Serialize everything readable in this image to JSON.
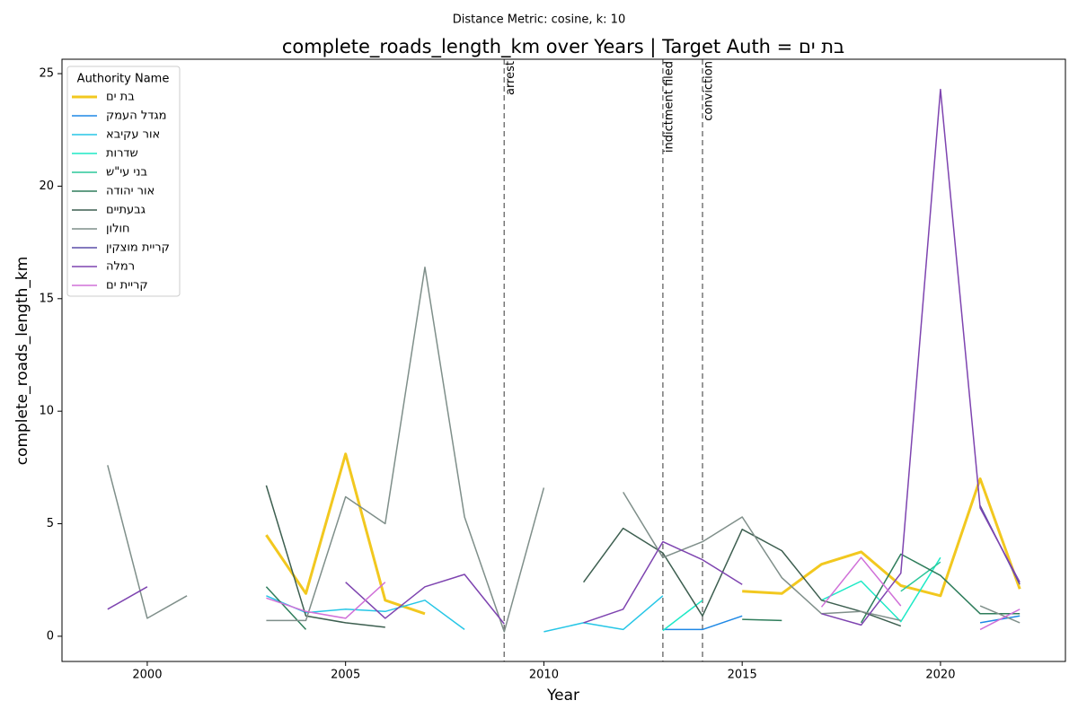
{
  "chart_data": {
    "type": "line",
    "title": "complete_roads_length_km over Years | Target Auth = בת ים",
    "subtitle": "Distance Metric: cosine, k: 10",
    "x_label": "Year",
    "y_label": "complete_roads_length_km",
    "legend_title": "Authority Name",
    "legend_position": "upper-left",
    "grid": false,
    "xlim": [
      1997.85,
      2023.15
    ],
    "xticks": [
      2000,
      2005,
      2010,
      2015,
      2020
    ],
    "ylim": [
      -1.12,
      25.64
    ],
    "yticks": [
      0,
      5,
      10,
      15,
      20,
      25
    ],
    "x": [
      1999,
      2000,
      2001,
      2002,
      2003,
      2004,
      2005,
      2006,
      2007,
      2008,
      2009,
      2010,
      2011,
      2012,
      2013,
      2014,
      2015,
      2016,
      2017,
      2018,
      2019,
      2020,
      2021,
      2022
    ],
    "annotations": [
      {
        "x": 2009,
        "label": "arrest"
      },
      {
        "x": 2013,
        "label": "indictment filed"
      },
      {
        "x": 2014,
        "label": "conviction"
      }
    ],
    "series": [
      {
        "name": "בת ים",
        "color": "#f2c81f",
        "linewidth": 3,
        "values": [
          null,
          null,
          null,
          null,
          4.5,
          1.9,
          8.1,
          1.6,
          1.0,
          null,
          null,
          null,
          null,
          null,
          null,
          null,
          2.0,
          1.9,
          3.2,
          3.75,
          2.25,
          1.8,
          7.0,
          2.1
        ]
      },
      {
        "name": "מגדל העמק",
        "color": "#1e88e5",
        "linewidth": 1.5,
        "values": [
          null,
          null,
          null,
          null,
          null,
          null,
          null,
          null,
          null,
          null,
          null,
          null,
          null,
          null,
          0.3,
          0.3,
          0.9,
          null,
          null,
          null,
          null,
          null,
          0.6,
          0.9
        ]
      },
      {
        "name": "אור עקיבא",
        "color": "#26c6e6",
        "linewidth": 1.5,
        "values": [
          null,
          null,
          null,
          null,
          1.8,
          1.05,
          1.2,
          1.1,
          1.6,
          0.3,
          null,
          0.2,
          0.6,
          0.3,
          1.8,
          null,
          null,
          null,
          null,
          null,
          null,
          null,
          null,
          null
        ]
      },
      {
        "name": "שדרות",
        "color": "#1de9c6",
        "linewidth": 1.5,
        "values": [
          null,
          null,
          null,
          null,
          null,
          null,
          null,
          null,
          null,
          null,
          null,
          null,
          null,
          null,
          0.25,
          1.6,
          null,
          null,
          1.6,
          2.45,
          0.65,
          3.5,
          null,
          null
        ]
      },
      {
        "name": "בני עי\"ש",
        "color": "#2bc79a",
        "linewidth": 1.5,
        "values": [
          null,
          null,
          null,
          null,
          null,
          null,
          null,
          null,
          null,
          null,
          null,
          null,
          null,
          null,
          null,
          null,
          null,
          null,
          null,
          null,
          2.0,
          3.3,
          null,
          null
        ]
      },
      {
        "name": "אור יהודה",
        "color": "#2e7d5b",
        "linewidth": 1.5,
        "values": [
          null,
          null,
          null,
          null,
          2.2,
          0.3,
          null,
          null,
          null,
          null,
          null,
          null,
          null,
          null,
          null,
          null,
          0.75,
          0.7,
          null,
          0.6,
          3.65,
          2.7,
          1.0,
          1.0
        ]
      },
      {
        "name": "גבעתיים",
        "color": "#3d5f50",
        "linewidth": 1.5,
        "values": [
          null,
          null,
          null,
          null,
          6.7,
          0.9,
          0.6,
          0.4,
          null,
          null,
          null,
          null,
          2.4,
          4.8,
          3.7,
          0.9,
          4.75,
          3.8,
          1.6,
          1.1,
          0.45,
          null,
          null,
          null
        ]
      },
      {
        "name": "חולון",
        "color": "#7f8f8a",
        "linewidth": 1.5,
        "values": [
          7.6,
          0.8,
          1.8,
          null,
          0.7,
          0.7,
          6.2,
          5.0,
          16.4,
          5.3,
          0.2,
          6.6,
          null,
          6.4,
          3.5,
          4.2,
          5.3,
          2.6,
          1.0,
          1.1,
          0.7,
          null,
          1.35,
          0.6
        ]
      },
      {
        "name": "קריית מוצקין",
        "color": "#5c4fa8",
        "linewidth": 1.5,
        "values": [
          null,
          null,
          null,
          null,
          null,
          null,
          null,
          null,
          null,
          null,
          null,
          null,
          null,
          null,
          null,
          null,
          null,
          null,
          null,
          null,
          null,
          null,
          5.8,
          2.3
        ]
      },
      {
        "name": "רמלה",
        "color": "#7e44b0",
        "linewidth": 1.5,
        "values": [
          1.2,
          2.2,
          null,
          null,
          null,
          null,
          2.4,
          0.8,
          2.2,
          2.75,
          0.55,
          null,
          0.6,
          1.2,
          4.2,
          3.4,
          2.3,
          null,
          1.0,
          0.5,
          2.8,
          24.3,
          5.7,
          2.4
        ]
      },
      {
        "name": "קריית ים",
        "color": "#d070d8",
        "linewidth": 1.5,
        "values": [
          null,
          null,
          null,
          null,
          1.7,
          1.1,
          0.8,
          2.4,
          null,
          null,
          null,
          null,
          null,
          null,
          null,
          null,
          null,
          null,
          1.3,
          3.5,
          1.35,
          null,
          0.3,
          1.2
        ]
      }
    ]
  }
}
